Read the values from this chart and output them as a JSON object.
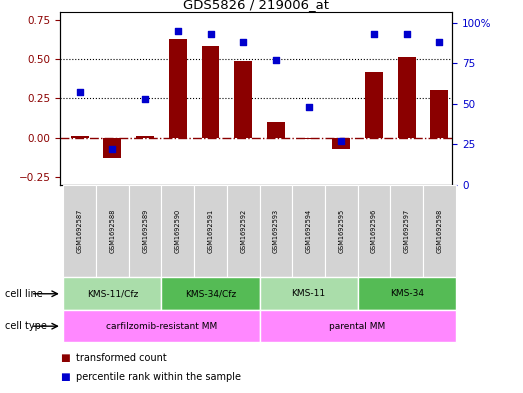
{
  "title": "GDS5826 / 219006_at",
  "samples": [
    "GSM1692587",
    "GSM1692588",
    "GSM1692589",
    "GSM1692590",
    "GSM1692591",
    "GSM1692592",
    "GSM1692593",
    "GSM1692594",
    "GSM1692595",
    "GSM1692596",
    "GSM1692597",
    "GSM1692598"
  ],
  "bar_values": [
    0.01,
    -0.13,
    0.01,
    0.63,
    0.58,
    0.49,
    0.1,
    -0.01,
    -0.07,
    0.42,
    0.51,
    0.3
  ],
  "dot_values": [
    0.57,
    0.22,
    0.53,
    0.95,
    0.93,
    0.88,
    0.77,
    0.48,
    0.27,
    0.93,
    0.93,
    0.88
  ],
  "bar_color": "#8B0000",
  "dot_color": "#0000CD",
  "ylim_left": [
    -0.3,
    0.8
  ],
  "ylim_right": [
    0.0,
    1.0667
  ],
  "yticks_left": [
    -0.25,
    0.0,
    0.25,
    0.5,
    0.75
  ],
  "yticks_right_vals": [
    0.0,
    0.25,
    0.5,
    0.75,
    1.0
  ],
  "ytick_labels_right": [
    "0",
    "25",
    "50",
    "75",
    "100%"
  ],
  "hlines_dotted": [
    0.25,
    0.5
  ],
  "cell_line_groups": [
    {
      "label": "KMS-11/Cfz",
      "start": 0,
      "end": 3,
      "color": "#AADDAA"
    },
    {
      "label": "KMS-34/Cfz",
      "start": 3,
      "end": 6,
      "color": "#55BB55"
    },
    {
      "label": "KMS-11",
      "start": 6,
      "end": 9,
      "color": "#AADDAA"
    },
    {
      "label": "KMS-34",
      "start": 9,
      "end": 12,
      "color": "#55BB55"
    }
  ],
  "cell_type_groups": [
    {
      "label": "carfilzomib-resistant MM",
      "start": 0,
      "end": 6,
      "color": "#FF88FF"
    },
    {
      "label": "parental MM",
      "start": 6,
      "end": 12,
      "color": "#FF88FF"
    }
  ],
  "legend_items": [
    {
      "label": "transformed count",
      "color": "#8B0000"
    },
    {
      "label": "percentile rank within the sample",
      "color": "#0000CD"
    }
  ],
  "bar_width": 0.55,
  "xlim": [
    -0.6,
    11.4
  ]
}
